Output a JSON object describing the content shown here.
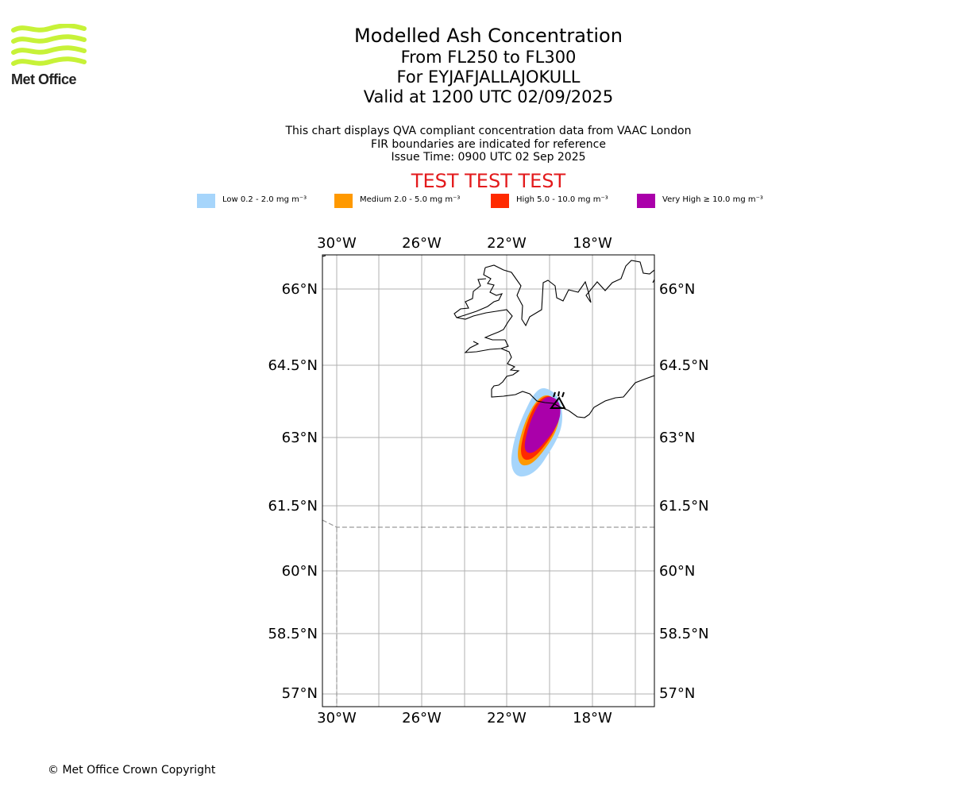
{
  "brand": {
    "logo_text": "Met Office",
    "logo_color": "#c7f238"
  },
  "header": {
    "title": "Modelled Ash Concentration",
    "levels": "From FL250 to FL300",
    "volcano": "For EYJAFJALLAJOKULL",
    "valid": "Valid at 1200 UTC 02/09/2025",
    "note1": "This chart displays QVA compliant concentration data from VAAC London",
    "note2": "FIR boundaries are indicated for reference",
    "issue": "Issue Time: 0900 UTC 02 Sep 2025",
    "test_banner": "TEST TEST TEST"
  },
  "legend": [
    {
      "label": "Low 0.2 - 2.0 mg m⁻³",
      "color": "#a6d5fb"
    },
    {
      "label": "Medium 2.0 - 5.0 mg m⁻³",
      "color": "#ff9900"
    },
    {
      "label": "High 5.0 - 10.0 mg m⁻³",
      "color": "#ff2a00"
    },
    {
      "label": "Very High ≥ 10.0 mg m⁻³",
      "color": "#aa00aa"
    }
  ],
  "map": {
    "lon_labels": [
      "30°W",
      "26°W",
      "22°W",
      "18°W"
    ],
    "lat_labels": [
      "66°N",
      "64.5°N",
      "63°N",
      "61.5°N",
      "60°N",
      "58.5°N",
      "57°N"
    ]
  },
  "footer": {
    "copyright": "© Met Office Crown Copyright"
  }
}
